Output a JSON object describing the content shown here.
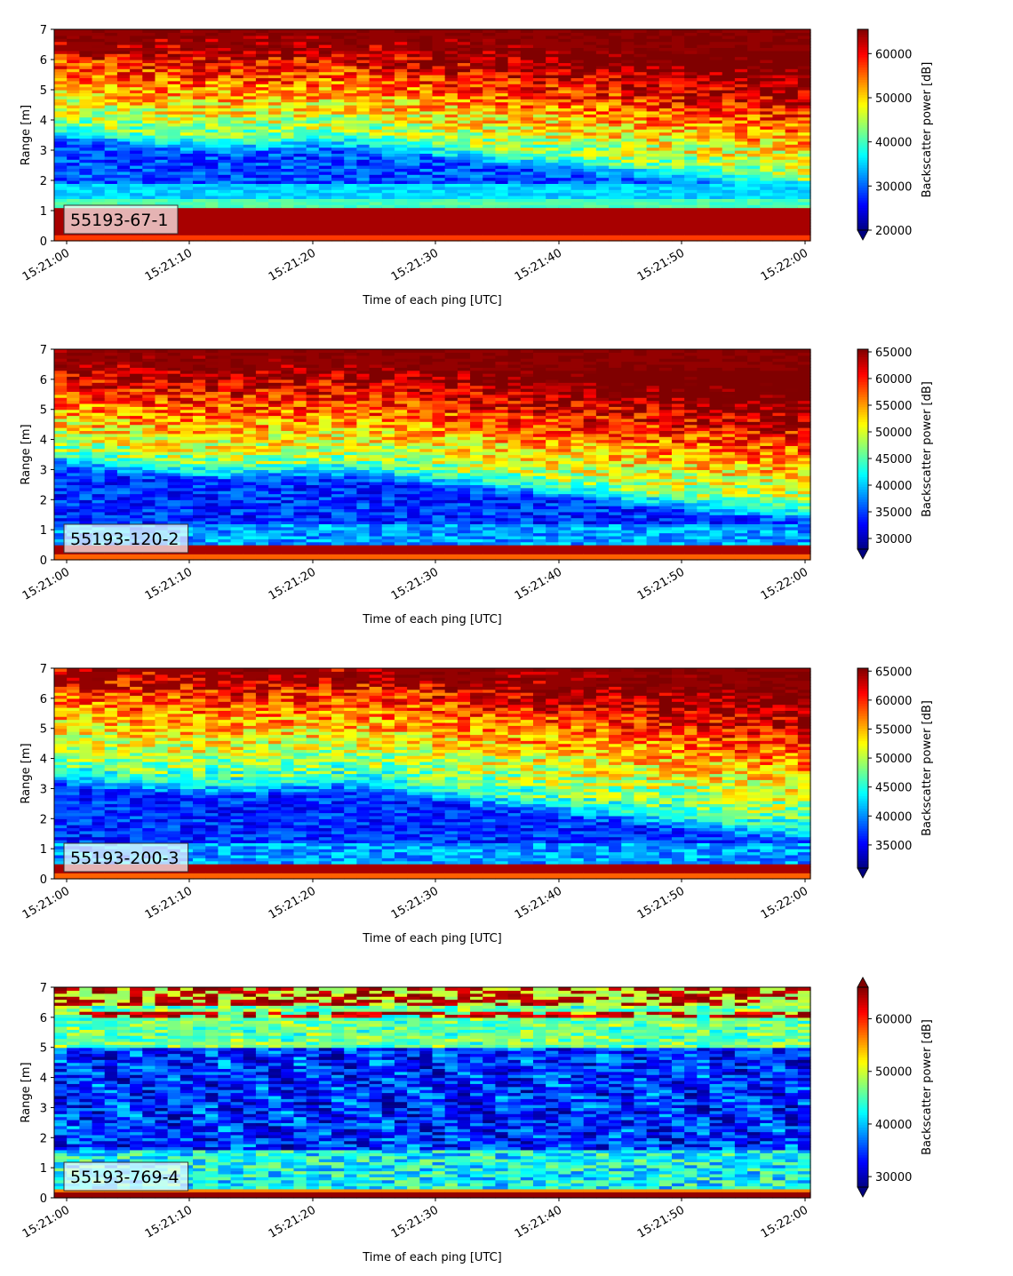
{
  "chart_data": [
    {
      "type": "heatmap",
      "label": "55193-67-1",
      "xlabel": "Time of each ping [UTC]",
      "ylabel": "Range [m]",
      "xticks": [
        "15:21:00",
        "15:21:10",
        "15:21:20",
        "15:21:30",
        "15:21:40",
        "15:21:50",
        "15:22:00"
      ],
      "xlim_seconds": [
        0,
        61
      ],
      "yticks": [
        0,
        1,
        2,
        3,
        4,
        5,
        6,
        7
      ],
      "ylim": [
        0,
        7
      ],
      "colorbar": {
        "label": "Backscatter power [dB]",
        "ticks": [
          20000,
          30000,
          40000,
          50000,
          60000
        ],
        "range": [
          20000,
          65500
        ],
        "extend": "min",
        "colormap": "jet"
      },
      "profile": {
        "bottom_hot_top": 1.15,
        "mid_band": [
          1.4,
          1.95
        ],
        "dark_band_top_start": 3.9,
        "dark_band_top_peak": 3.6,
        "dark_band_top_end": 2.0,
        "tail_switch_seconds": 53
      }
    },
    {
      "type": "heatmap",
      "label": "55193-120-2",
      "xlabel": "Time of each ping [UTC]",
      "ylabel": "Range [m]",
      "xticks": [
        "15:21:00",
        "15:21:10",
        "15:21:20",
        "15:21:30",
        "15:21:40",
        "15:21:50",
        "15:22:00"
      ],
      "xlim_seconds": [
        0,
        61
      ],
      "yticks": [
        0,
        1,
        2,
        3,
        4,
        5,
        6,
        7
      ],
      "ylim": [
        0,
        7
      ],
      "colorbar": {
        "label": "Backscatter power [dB]",
        "ticks": [
          30000,
          35000,
          40000,
          45000,
          50000,
          55000,
          60000,
          65000
        ],
        "range": [
          28000,
          65500
        ],
        "extend": "min",
        "colormap": "jet"
      },
      "profile": {
        "bottom_hot_top": 0.5,
        "dark_band_top_start": 3.6,
        "dark_band_top_peak": 3.3,
        "dark_band_top_end": 1.7
      }
    },
    {
      "type": "heatmap",
      "label": "55193-200-3",
      "xlabel": "Time of each ping [UTC]",
      "ylabel": "Range [m]",
      "xticks": [
        "15:21:00",
        "15:21:10",
        "15:21:20",
        "15:21:30",
        "15:21:40",
        "15:21:50",
        "15:22:00"
      ],
      "xlim_seconds": [
        0,
        61
      ],
      "yticks": [
        0,
        1,
        2,
        3,
        4,
        5,
        6,
        7
      ],
      "ylim": [
        0,
        7
      ],
      "colorbar": {
        "label": "Backscatter power [dB]",
        "ticks": [
          35000,
          40000,
          45000,
          50000,
          55000,
          60000,
          65000
        ],
        "range": [
          31000,
          65500
        ],
        "extend": "min",
        "colormap": "jet"
      },
      "profile": {
        "bottom_hot_top": 0.45,
        "dark_band_top_start": 3.7,
        "dark_band_top_peak": 3.5,
        "dark_band_top_end": 1.7
      }
    },
    {
      "type": "heatmap",
      "label": "55193-769-4",
      "xlabel": "Time of each ping [UTC]",
      "ylabel": "Range [m]",
      "xticks": [
        "15:21:00",
        "15:21:10",
        "15:21:20",
        "15:21:30",
        "15:21:40",
        "15:21:50",
        "15:22:00"
      ],
      "xlim_seconds": [
        0,
        61
      ],
      "yticks": [
        0,
        1,
        2,
        3,
        4,
        5,
        6,
        7
      ],
      "ylim": [
        0,
        7
      ],
      "colorbar": {
        "label": "Backscatter power [dB]",
        "ticks": [
          30000,
          40000,
          50000,
          60000
        ],
        "range": [
          28000,
          66000
        ],
        "extend": "both",
        "colormap": "jet"
      },
      "profile": {
        "bottom_hot_top": 0.3,
        "surface_line": 6.1
      }
    }
  ]
}
